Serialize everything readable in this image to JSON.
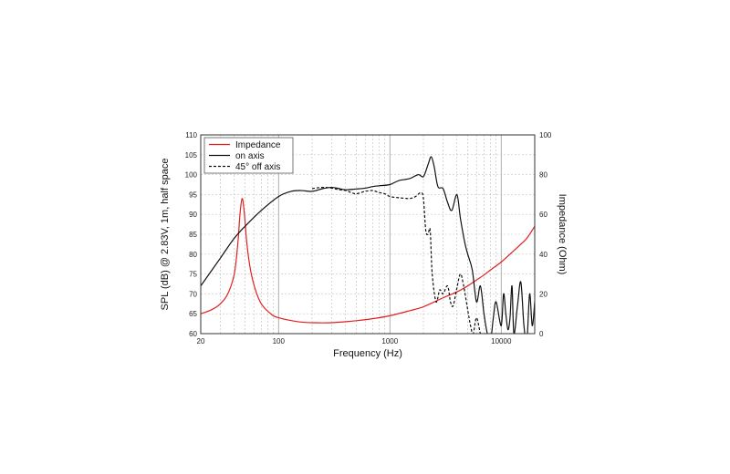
{
  "chart_data": {
    "type": "line",
    "title": "",
    "xlabel": "Frequency (Hz)",
    "ylabel": "SPL (dB) @ 2.83V, 1m, half space",
    "y2label": "Impedance (Ohm)",
    "x_scale": "log",
    "xlim": [
      20,
      20000
    ],
    "ylim": [
      60,
      110
    ],
    "y2lim": [
      0,
      100
    ],
    "x_tick_labels": [
      "20",
      "100",
      "1000",
      "10000"
    ],
    "y_tick_labels": [
      "60",
      "65",
      "70",
      "75",
      "80",
      "85",
      "90",
      "95",
      "100",
      "105",
      "110"
    ],
    "y2_tick_labels": [
      "0",
      "20",
      "40",
      "60",
      "80",
      "100"
    ],
    "grid": true,
    "legend_position": "top-left",
    "series": [
      {
        "name": "Impedance",
        "axis": "right",
        "color": "#e02020",
        "style": "solid",
        "x": [
          20,
          25,
          30,
          35,
          40,
          43,
          45,
          47,
          49,
          52,
          56,
          62,
          70,
          85,
          100,
          150,
          200,
          300,
          500,
          700,
          1000,
          1500,
          2000,
          3000,
          4000,
          5000,
          6000,
          7000,
          8000,
          10000,
          12000,
          15000,
          17000,
          20000
        ],
        "values": [
          10,
          12,
          15,
          20,
          30,
          45,
          60,
          68,
          62,
          45,
          32,
          22,
          15,
          10,
          8,
          6,
          5.5,
          5.5,
          6.5,
          7.5,
          9,
          11.5,
          13.5,
          18,
          21,
          24,
          27,
          29.5,
          32,
          36,
          40,
          45,
          48,
          54
        ]
      },
      {
        "name": "on axis",
        "axis": "left",
        "color": "#111111",
        "style": "solid",
        "x": [
          20,
          30,
          40,
          50,
          70,
          100,
          130,
          160,
          200,
          250,
          300,
          350,
          400,
          500,
          600,
          700,
          800,
          1000,
          1200,
          1500,
          1800,
          2000,
          2200,
          2350,
          2500,
          2700,
          3000,
          3300,
          3600,
          4000,
          4300,
          4700,
          5000,
          5500,
          6000,
          6500,
          7000,
          7500,
          8000,
          8500,
          9000,
          10000,
          10500,
          11000,
          11500,
          12000,
          12500,
          13000,
          14000,
          15000,
          16000,
          17000,
          18000,
          19000,
          20000
        ],
        "values": [
          72,
          79,
          84,
          87,
          91,
          94.5,
          95.8,
          96,
          95.8,
          96.5,
          96.8,
          96.5,
          96.2,
          96.4,
          96.6,
          97,
          97.2,
          97.5,
          98.5,
          99,
          100,
          99.5,
          102.5,
          104.5,
          102,
          97,
          96.5,
          93,
          91,
          95,
          89,
          83,
          80,
          76,
          68,
          72,
          65,
          60,
          58,
          64,
          68,
          62,
          70,
          65,
          61,
          64,
          72,
          60,
          67,
          73,
          62,
          58,
          70,
          62,
          68
        ]
      },
      {
        "name": "45° off axis",
        "axis": "left",
        "color": "#111111",
        "style": "dashed",
        "x": [
          200,
          250,
          300,
          350,
          400,
          450,
          500,
          600,
          700,
          800,
          900,
          1000,
          1200,
          1500,
          1700,
          1900,
          2000,
          2100,
          2200,
          2300,
          2400,
          2600,
          2800,
          3000,
          3300,
          3500,
          3700,
          4000,
          4300,
          4600,
          5000,
          5300,
          5600,
          6000,
          6500,
          7000
        ],
        "values": [
          96.5,
          96.8,
          96.6,
          96.2,
          96,
          95.5,
          95.2,
          95.8,
          96,
          95.5,
          95.2,
          94.5,
          94.2,
          94,
          94.5,
          95.5,
          94,
          86,
          85,
          86,
          75,
          68,
          71,
          70,
          72,
          68,
          67,
          71.5,
          75,
          72,
          66,
          62,
          60,
          64,
          60,
          58
        ]
      }
    ]
  }
}
